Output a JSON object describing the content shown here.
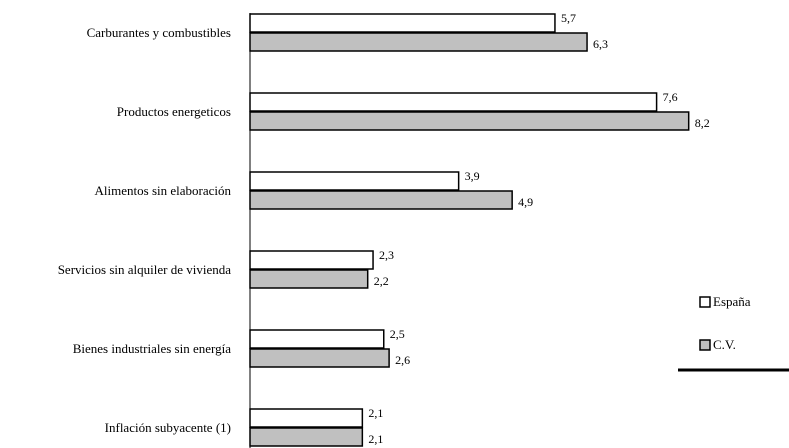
{
  "chart_data": {
    "type": "bar",
    "orientation": "horizontal",
    "categories": [
      "Carburantes y combustibles",
      "Productos energeticos",
      "Alimentos sin elaboración",
      "Servicios sin alquiler de vivienda",
      "Bienes industriales sin energía",
      "Inflación subyacente (1)"
    ],
    "series": [
      {
        "name": "España",
        "values": [
          5.7,
          7.6,
          3.9,
          2.3,
          2.5,
          2.1
        ],
        "value_labels": [
          "5,7",
          "7,6",
          "3,9",
          "2,3",
          "2,5",
          "2,1"
        ],
        "color": "#ffffff"
      },
      {
        "name": "C.V.",
        "values": [
          6.3,
          8.2,
          4.9,
          2.2,
          2.6,
          2.1
        ],
        "value_labels": [
          "6,3",
          "8,2",
          "4,9",
          "2,2",
          "2,6",
          "2,1"
        ],
        "color": "#c0c0c0"
      }
    ],
    "xlim": [
      0,
      10
    ],
    "grid": false,
    "legend_position": "right",
    "title": "",
    "xlabel": "",
    "ylabel": ""
  }
}
